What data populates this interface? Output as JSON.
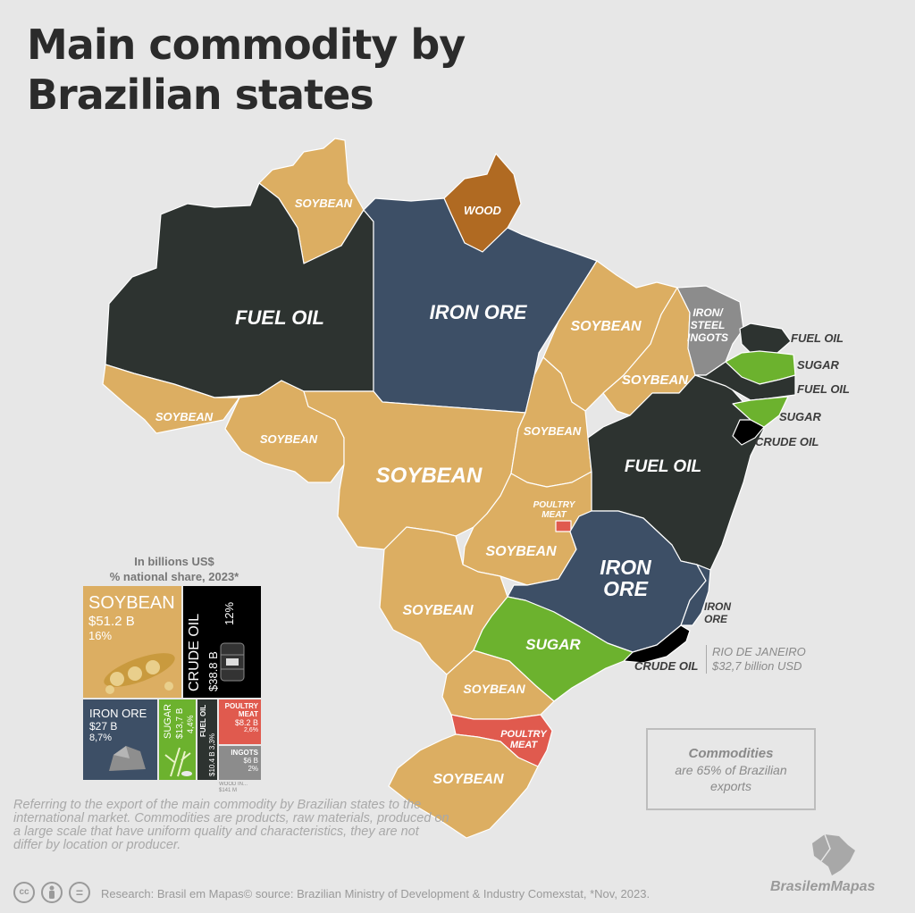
{
  "title": {
    "line1": "Main commodity by",
    "line2": "Brazilian states"
  },
  "map_labels": {
    "rr": "SOYBEAN",
    "ap": "WOOD",
    "am": "FUEL OIL",
    "pa": "IRON ORE",
    "ma": "SOYBEAN",
    "pi": "SOYBEAN",
    "ce": "IRON/\nSTEEL\nINGOTS",
    "ac": "SOYBEAN",
    "ro": "SOYBEAN",
    "mt": "SOYBEAN",
    "to": "SOYBEAN",
    "ba": "FUEL OIL",
    "df": "POULTRY\nMEAT",
    "go": "SOYBEAN",
    "mg": "IRON\nORE",
    "ms": "SOYBEAN",
    "sp": "SUGAR",
    "pr": "SOYBEAN",
    "sc": "POULTRY\nMEAT",
    "rs": "SOYBEAN"
  },
  "outside_labels": {
    "rn": "FUEL OIL",
    "pb": "SUGAR",
    "pe": "FUEL OIL",
    "al": "SUGAR",
    "se": "CRUDE OIL",
    "es": "IRON\nORE",
    "rj": "CRUDE OIL"
  },
  "rj_note": {
    "line1": "RIO DE JANEIRO",
    "line2": "$32,7 billion USD"
  },
  "units": {
    "line1": "In billions US$",
    "line2": "% national share, 2023*"
  },
  "treemap": [
    {
      "name": "SOYBEAN",
      "value": "$51.2 B",
      "share": "16%",
      "color": "#dcae62"
    },
    {
      "name": "CRUDE OIL",
      "value": "$38.8 B",
      "share": "12%",
      "color": "#000000"
    },
    {
      "name": "IRON ORE",
      "value": "$27 B",
      "share": "8,7%",
      "color": "#3d4f66"
    },
    {
      "name": "SUGAR",
      "value": "$13,7 B",
      "share": "4,4%",
      "color": "#6cb22e"
    },
    {
      "name": "FUEL OIL",
      "value": "$10.4 B",
      "share": "3,3%",
      "color": "#2d3330"
    },
    {
      "name": "POULTRY MEAT",
      "value": "$8.2 B",
      "share": "2,6%",
      "color": "#e05a4e"
    },
    {
      "name": "INGOTS",
      "value": "$6 B",
      "share": "2%",
      "color": "#8c8c8c"
    },
    {
      "name": "WOOD IN...",
      "value": "$141 M",
      "share": "",
      "color": "#b06a22"
    }
  ],
  "commodities_box": {
    "title": "Commodities",
    "line1": "are 65% of Brazilian",
    "line2": "exports"
  },
  "description": "Referring to the export of the main commodity by Brazilian states to the international market. Commodities are products, raw materials, produced on a large scale that have uniform quality and characteristics, they are not differ by location or producer.",
  "research": "Research: Brasil em Mapas© source: Brazilian Ministry of Development & Industry Comexstat, *Nov, 2023.",
  "brand": "BrasilemMapas",
  "license_icons": [
    "cc-icon",
    "attribution-icon",
    "no-derivatives-icon"
  ],
  "colors": {
    "soybean": "#dcae62",
    "fuel_oil": "#2d3330",
    "iron_ore": "#3d4f66",
    "wood": "#b06a22",
    "sugar": "#6cb22e",
    "crude_oil": "#000000",
    "poultry": "#e05a4e",
    "ingots": "#8c8c8c"
  }
}
